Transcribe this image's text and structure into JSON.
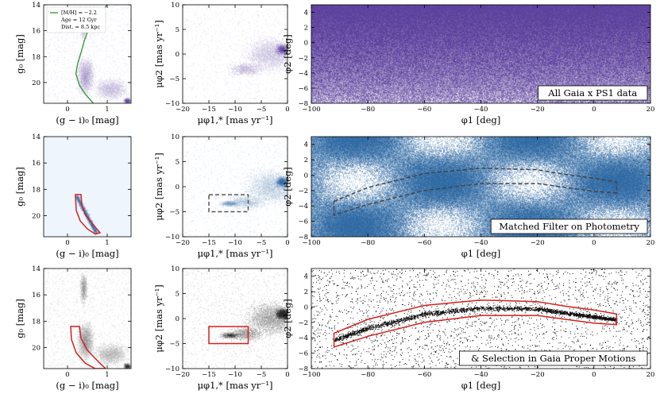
{
  "chart_data": [
    {
      "type": "heatmap",
      "id": "r0c0",
      "kind": "cmd",
      "color": "#4b2c92",
      "xlabel": "(g − i)₀ [mag]",
      "ylabel": "g₀ [mag]",
      "xlim": [
        -0.6,
        1.6
      ],
      "ylim": [
        21.6,
        14
      ],
      "xticks": [
        0,
        1
      ],
      "yticks": [
        14,
        16,
        18,
        20
      ],
      "legend": [
        "[M/H] = −2.2",
        "Age = 12 Gyr",
        "Dist. = 8.5 kpc"
      ],
      "isochrone": {
        "color": "#3a9a3a",
        "points": [
          [
            1.0,
            14.0
          ],
          [
            0.55,
            15.7
          ],
          [
            0.42,
            16.8
          ],
          [
            0.33,
            17.8
          ],
          [
            0.26,
            18.5
          ],
          [
            0.21,
            19.3
          ],
          [
            0.3,
            20.2
          ],
          [
            0.45,
            20.9
          ],
          [
            0.65,
            21.6
          ]
        ]
      }
    },
    {
      "type": "heatmap",
      "id": "r0c1",
      "kind": "pm",
      "color": "#4b2c92",
      "xlabel": "μφ1,* [mas yr⁻¹]",
      "ylabel": "μφ2 [mas yr⁻¹]",
      "xlim": [
        -20,
        0
      ],
      "ylim": [
        -10,
        10
      ],
      "xticks": [
        -20,
        -15,
        -10,
        -5,
        0
      ],
      "yticks": [
        -10,
        -5,
        0,
        5,
        10
      ]
    },
    {
      "type": "heatmap",
      "id": "r0c2",
      "kind": "sky",
      "color": "#4b2c92",
      "xlabel": "φ1 [deg]",
      "ylabel": "φ2 [deg]",
      "xlim": [
        -100,
        20
      ],
      "ylim": [
        -8,
        5
      ],
      "xticks": [
        -100,
        -80,
        -60,
        -40,
        -20,
        0,
        20
      ],
      "yticks": [
        -8,
        -6,
        -4,
        -2,
        0,
        2,
        4
      ],
      "label": "All Gaia x PS1 data"
    },
    {
      "type": "heatmap",
      "id": "r1c0",
      "kind": "cmd_filter",
      "color": "#1a5a9a",
      "xlabel": "(g − i)₀ [mag]",
      "ylabel": "g₀ [mag]",
      "xlim": [
        -0.6,
        1.6
      ],
      "ylim": [
        21.6,
        14
      ],
      "xticks": [
        0,
        1
      ],
      "yticks": [
        14,
        16,
        18,
        20
      ],
      "selection": {
        "color": "#d42020",
        "points": [
          [
            0.2,
            18.4
          ],
          [
            0.34,
            18.4
          ],
          [
            0.36,
            19.2
          ],
          [
            0.46,
            20.0
          ],
          [
            0.62,
            20.6
          ],
          [
            0.82,
            21.3
          ],
          [
            0.7,
            21.4
          ],
          [
            0.5,
            21.0
          ],
          [
            0.32,
            20.4
          ],
          [
            0.22,
            19.6
          ],
          [
            0.2,
            18.4
          ]
        ]
      }
    },
    {
      "type": "heatmap",
      "id": "r1c1",
      "kind": "pm",
      "color": "#1a5a9a",
      "xlabel": "μφ1,* [mas yr⁻¹]",
      "ylabel": "μφ2 [mas yr⁻¹]",
      "xlim": [
        -20,
        0
      ],
      "ylim": [
        -10,
        10
      ],
      "xticks": [
        -20,
        -15,
        -10,
        -5,
        0
      ],
      "yticks": [
        -10,
        -5,
        0,
        5,
        10
      ],
      "box": {
        "color": "#555555",
        "dashed": true,
        "x": [
          -15,
          -7.5
        ],
        "y": [
          -5,
          -1.6
        ]
      }
    },
    {
      "type": "heatmap",
      "id": "r1c2",
      "kind": "sky",
      "color": "#1a5a9a",
      "xlabel": "φ1 [deg]",
      "ylabel": "φ2 [deg]",
      "xlim": [
        -100,
        20
      ],
      "ylim": [
        -8,
        5
      ],
      "xticks": [
        -100,
        -80,
        -60,
        -40,
        -20,
        0,
        20
      ],
      "yticks": [
        -8,
        -6,
        -4,
        -2,
        0,
        2,
        4
      ],
      "label": "Matched Filter on Photometry",
      "track": {
        "color": "#444444",
        "dashed": true,
        "upper": [
          [
            -92,
            -3.4
          ],
          [
            -80,
            -1.6
          ],
          [
            -60,
            0.2
          ],
          [
            -40,
            0.9
          ],
          [
            -20,
            0.7
          ],
          [
            -10,
            0.1
          ],
          [
            0,
            -0.4
          ],
          [
            8,
            -0.9
          ]
        ],
        "lower": [
          [
            -92,
            -5.2
          ],
          [
            -80,
            -3.8
          ],
          [
            -60,
            -2.0
          ],
          [
            -40,
            -1.1
          ],
          [
            -20,
            -1.1
          ],
          [
            -10,
            -1.6
          ],
          [
            0,
            -2.1
          ],
          [
            8,
            -2.3
          ]
        ]
      }
    },
    {
      "type": "heatmap",
      "id": "r2c0",
      "kind": "cmd",
      "color": "#111111",
      "xlabel": "(g − i)₀ [mag]",
      "ylabel": "g₀ [mag]",
      "xlim": [
        -0.6,
        1.6
      ],
      "ylim": [
        21.6,
        14
      ],
      "xticks": [
        0,
        1
      ],
      "yticks": [
        14,
        16,
        18,
        20
      ],
      "selection": {
        "color": "#d42020",
        "points": [
          [
            0.08,
            18.4
          ],
          [
            0.3,
            18.4
          ],
          [
            0.34,
            19.3
          ],
          [
            0.5,
            20.2
          ],
          [
            0.72,
            20.9
          ],
          [
            0.96,
            21.6
          ],
          [
            0.7,
            21.6
          ],
          [
            0.45,
            21.2
          ],
          [
            0.22,
            20.4
          ],
          [
            0.1,
            19.4
          ],
          [
            0.08,
            18.4
          ]
        ]
      }
    },
    {
      "type": "scatter",
      "id": "r2c1",
      "kind": "pm",
      "color": "#111111",
      "xlabel": "μφ1,* [mas yr⁻¹]",
      "ylabel": "μφ2 [mas yr⁻¹]",
      "xlim": [
        -20,
        0
      ],
      "ylim": [
        -10,
        10
      ],
      "xticks": [
        -20,
        -15,
        -10,
        -5,
        0
      ],
      "yticks": [
        -10,
        -5,
        0,
        5,
        10
      ],
      "box": {
        "color": "#d42020",
        "dashed": false,
        "x": [
          -15,
          -7.5
        ],
        "y": [
          -5,
          -1.6
        ]
      }
    },
    {
      "type": "scatter",
      "id": "r2c2",
      "kind": "sky_scatter",
      "color": "#111111",
      "xlabel": "φ1 [deg]",
      "ylabel": "φ2 [deg]",
      "xlim": [
        -100,
        20
      ],
      "ylim": [
        -8,
        5
      ],
      "xticks": [
        -100,
        -80,
        -60,
        -40,
        -20,
        0,
        20
      ],
      "yticks": [
        -8,
        -6,
        -4,
        -2,
        0,
        2,
        4
      ],
      "label": "& Selection in Gaia Proper Motions",
      "track": {
        "color": "#d42020",
        "dashed": false,
        "upper": [
          [
            -92,
            -3.4
          ],
          [
            -80,
            -1.6
          ],
          [
            -60,
            0.2
          ],
          [
            -40,
            0.9
          ],
          [
            -20,
            0.7
          ],
          [
            -10,
            0.1
          ],
          [
            0,
            -0.4
          ],
          [
            8,
            -0.9
          ]
        ],
        "lower": [
          [
            -92,
            -5.2
          ],
          [
            -80,
            -3.8
          ],
          [
            -60,
            -2.0
          ],
          [
            -40,
            -1.1
          ],
          [
            -20,
            -1.1
          ],
          [
            -10,
            -1.6
          ],
          [
            0,
            -2.1
          ],
          [
            8,
            -2.3
          ]
        ]
      }
    }
  ]
}
